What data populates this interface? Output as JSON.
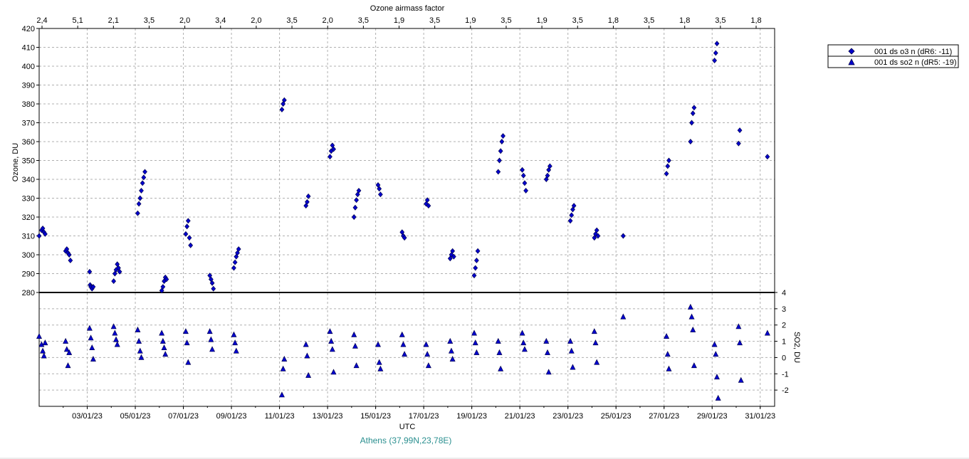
{
  "colors": {
    "marker_fill": "#0000cc",
    "marker_stroke": "#000040",
    "grid": "#b0b0b0",
    "station_text": "#2a8f8f"
  },
  "chart_data": [
    {
      "panel": "ozone",
      "type": "scatter",
      "ylabel": "Ozone, DU",
      "ylim": [
        280,
        420
      ],
      "yticks": [
        "280",
        "290",
        "300",
        "310",
        "320",
        "330",
        "340",
        "350",
        "360",
        "370",
        "380",
        "390",
        "400",
        "410",
        "420"
      ],
      "top_axis_title": "Ozone airmass factor",
      "top_axis_ticks": [
        "2,4",
        "5,1",
        "2,1",
        "3,5",
        "2,0",
        "3,4",
        "2,0",
        "3,5",
        "2,0",
        "3,5",
        "1,9",
        "3,5",
        "1,9",
        "3,5",
        "1,9",
        "3,5",
        "1,8",
        "3,5",
        "1,8",
        "3,5",
        "1,8"
      ],
      "grid": true,
      "series": [
        {
          "name": "001 ds o3  n (dR6: -11)",
          "marker": "diamond",
          "x_day": [
            1.0,
            1.1,
            1.15,
            1.2,
            1.25,
            2.1,
            2.15,
            2.2,
            2.25,
            2.3,
            3.1,
            3.12,
            3.15,
            3.2,
            3.25,
            4.1,
            4.15,
            4.2,
            4.25,
            4.3,
            4.35,
            5.1,
            5.15,
            5.2,
            5.25,
            5.3,
            5.35,
            5.4,
            6.1,
            6.15,
            6.2,
            6.25,
            6.3,
            7.1,
            7.15,
            7.2,
            7.25,
            7.3,
            8.1,
            8.15,
            8.2,
            8.25,
            9.1,
            9.15,
            9.2,
            9.25,
            9.3,
            11.1,
            11.15,
            11.2,
            12.1,
            12.15,
            12.2,
            13.1,
            13.15,
            13.2,
            13.25,
            14.1,
            14.15,
            14.2,
            14.25,
            14.3,
            15.1,
            15.15,
            15.2,
            16.1,
            16.15,
            16.2,
            17.1,
            17.15,
            17.2,
            18.1,
            18.15,
            18.2,
            18.25,
            19.1,
            19.15,
            19.2,
            19.25,
            20.1,
            20.15,
            20.2,
            20.25,
            20.3,
            21.1,
            21.15,
            21.2,
            21.25,
            22.1,
            22.15,
            22.2,
            22.25,
            23.1,
            23.15,
            23.2,
            23.25,
            24.1,
            24.15,
            24.2,
            24.25,
            25.3,
            27.1,
            27.15,
            27.2,
            28.1,
            28.15,
            28.2,
            28.25,
            29.1,
            29.15,
            29.2,
            30.1,
            30.15,
            31.3
          ],
          "y": [
            310,
            313,
            314,
            312,
            311,
            302,
            303,
            301,
            300,
            297,
            291,
            284,
            283,
            282,
            283,
            286,
            290,
            292,
            295,
            293,
            291,
            322,
            327,
            330,
            334,
            338,
            341,
            344,
            281,
            283,
            286,
            288,
            287,
            311,
            315,
            318,
            309,
            305,
            289,
            287,
            285,
            282,
            293,
            296,
            299,
            301,
            303,
            377,
            380,
            382,
            326,
            328,
            331,
            352,
            355,
            358,
            356,
            320,
            325,
            329,
            332,
            334,
            337,
            335,
            332,
            312,
            310,
            309,
            327,
            329,
            326,
            298,
            300,
            302,
            299,
            289,
            293,
            297,
            302,
            344,
            350,
            355,
            360,
            363,
            345,
            342,
            338,
            334,
            340,
            342,
            345,
            347,
            318,
            321,
            324,
            326,
            309,
            311,
            313,
            310,
            310,
            343,
            347,
            350,
            360,
            370,
            375,
            378,
            403,
            407,
            412,
            359,
            366,
            352
          ]
        },
        {
          "name": "001 ds so2 n (dR5: -19)",
          "marker": "triangle",
          "ylabel": "SO2, DU",
          "ylim": [
            -3,
            4
          ],
          "yticks": [
            "-2",
            "-1",
            "0",
            "1",
            "2",
            "3",
            "4"
          ],
          "x_day": [
            1.0,
            1.1,
            1.15,
            1.2,
            1.25,
            2.1,
            2.15,
            2.2,
            2.25,
            3.1,
            3.15,
            3.2,
            3.25,
            4.1,
            4.15,
            4.2,
            4.25,
            5.1,
            5.15,
            5.2,
            5.25,
            6.1,
            6.15,
            6.2,
            6.25,
            7.1,
            7.15,
            7.2,
            8.1,
            8.15,
            8.2,
            9.1,
            9.15,
            9.2,
            11.1,
            11.15,
            11.2,
            12.1,
            12.15,
            12.2,
            13.1,
            13.15,
            13.2,
            13.25,
            14.1,
            14.15,
            14.2,
            15.1,
            15.15,
            15.2,
            16.1,
            16.15,
            16.2,
            17.1,
            17.15,
            17.2,
            18.1,
            18.15,
            18.2,
            19.1,
            19.15,
            19.2,
            20.1,
            20.15,
            20.2,
            21.1,
            21.15,
            21.2,
            22.1,
            22.15,
            22.2,
            23.1,
            23.15,
            23.2,
            24.1,
            24.15,
            24.2,
            25.3,
            27.1,
            27.15,
            27.2,
            28.1,
            28.15,
            28.2,
            28.25,
            29.1,
            29.15,
            29.2,
            29.25,
            30.1,
            30.15,
            30.2,
            31.3
          ],
          "y": [
            1.3,
            0.8,
            0.4,
            0.1,
            0.9,
            1.0,
            0.5,
            -0.5,
            0.3,
            1.8,
            1.2,
            0.6,
            -0.1,
            1.9,
            1.5,
            1.1,
            0.8,
            1.7,
            1.0,
            0.4,
            0.0,
            1.5,
            1.0,
            0.6,
            0.2,
            1.6,
            0.9,
            -0.3,
            1.6,
            1.1,
            0.5,
            1.4,
            0.9,
            0.4,
            -2.3,
            -0.7,
            -0.1,
            0.8,
            0.1,
            -1.1,
            1.6,
            1.0,
            0.5,
            -0.9,
            1.4,
            0.7,
            -0.5,
            0.8,
            -0.3,
            -0.7,
            1.4,
            0.8,
            0.2,
            0.8,
            0.2,
            -0.5,
            1.0,
            0.4,
            -0.1,
            1.5,
            0.9,
            0.3,
            1.0,
            0.3,
            -0.7,
            1.5,
            0.9,
            0.5,
            1.0,
            0.3,
            -0.9,
            1.0,
            0.4,
            -0.6,
            1.6,
            0.9,
            -0.3,
            2.5,
            1.3,
            0.2,
            -0.7,
            3.1,
            2.5,
            1.7,
            -0.5,
            0.8,
            0.2,
            -1.2,
            -2.5,
            1.9,
            0.9,
            -1.4,
            1.5
          ]
        }
      ],
      "xlabel": "UTC",
      "xlim_day": [
        1.0,
        31.6
      ],
      "xticks": [
        "03/01/23",
        "05/01/23",
        "07/01/23",
        "09/01/23",
        "11/01/23",
        "13/01/23",
        "15/01/23",
        "17/01/23",
        "19/01/23",
        "21/01/23",
        "23/01/23",
        "25/01/23",
        "27/01/23",
        "29/01/23",
        "31/01/23"
      ],
      "xticks_day": [
        3,
        5,
        7,
        9,
        11,
        13,
        15,
        17,
        19,
        21,
        23,
        25,
        27,
        29,
        31
      ],
      "station_label": "Athens (37,99N,23,78E)",
      "legend_position": "right"
    }
  ]
}
